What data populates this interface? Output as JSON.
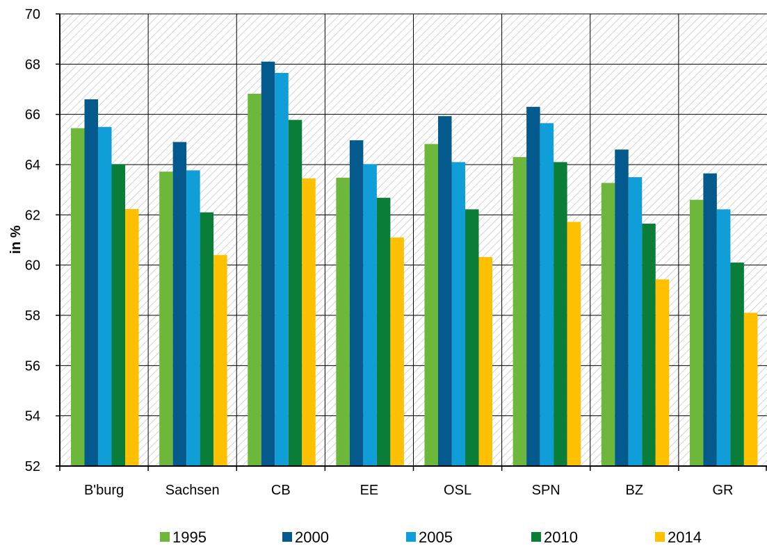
{
  "chart_data": {
    "type": "bar",
    "ylabel": "in %",
    "ylim": [
      52,
      70
    ],
    "yticks": [
      52,
      54,
      56,
      58,
      60,
      62,
      64,
      66,
      68,
      70
    ],
    "grid": true,
    "background_pattern": "diagonal-hatch",
    "legend_position": "bottom",
    "categories": [
      "B'burg",
      "Sachsen",
      "CB",
      "EE",
      "OSL",
      "SPN",
      "BZ",
      "GR"
    ],
    "series": [
      {
        "name": "1995",
        "color": "#6DB83A",
        "values": [
          65.45,
          63.72,
          66.82,
          63.48,
          64.82,
          64.3,
          63.27,
          62.6
        ]
      },
      {
        "name": "2000",
        "color": "#045A8D",
        "values": [
          66.6,
          64.9,
          68.1,
          64.97,
          65.93,
          66.3,
          64.6,
          63.65
        ]
      },
      {
        "name": "2005",
        "color": "#0F9ED8",
        "values": [
          65.5,
          63.77,
          67.65,
          64.02,
          64.1,
          65.65,
          63.5,
          62.22
        ]
      },
      {
        "name": "2010",
        "color": "#0A7D38",
        "values": [
          64.02,
          62.1,
          65.78,
          62.68,
          62.22,
          64.1,
          61.65,
          60.1
        ]
      },
      {
        "name": "2014",
        "color": "#FFC000",
        "values": [
          62.23,
          60.4,
          63.45,
          61.1,
          60.32,
          61.72,
          59.43,
          58.1
        ]
      }
    ]
  }
}
